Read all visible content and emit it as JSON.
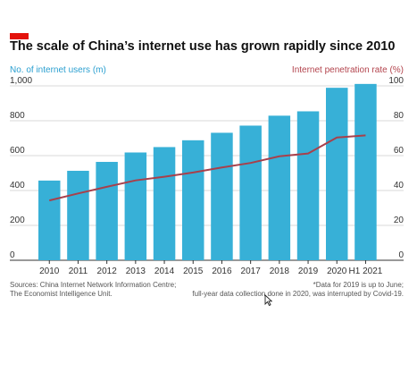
{
  "chart_data": {
    "type": "bar",
    "title": "The scale of China’s internet use has grown rapidly since 2010",
    "left_axis_label": "No. of internet users (m)",
    "right_axis_label": "Internet penetration rate (%)",
    "categories": [
      "2010",
      "2011",
      "2012",
      "2013",
      "2014",
      "2015",
      "2016",
      "2017",
      "2018",
      "2019",
      "2020",
      "H1 2021"
    ],
    "series": [
      {
        "name": "No. of internet users (m)",
        "axis": "left",
        "type": "bar",
        "values": [
          457,
          513,
          564,
          618,
          649,
          688,
          731,
          772,
          829,
          854,
          989,
          1011
        ]
      },
      {
        "name": "Internet penetration rate (%)",
        "axis": "right",
        "type": "line",
        "values": [
          34.3,
          38.3,
          42.1,
          45.8,
          47.9,
          50.3,
          53.2,
          55.8,
          59.6,
          61.2,
          70.4,
          71.6
        ]
      }
    ],
    "left_ticks": [
      "0",
      "200",
      "400",
      "600",
      "800",
      "1,000"
    ],
    "right_ticks": [
      "0",
      "20",
      "40",
      "60",
      "80",
      "100"
    ],
    "ylim_left": [
      0,
      1000
    ],
    "ylim_right": [
      0,
      100
    ],
    "grid": true,
    "colors": {
      "bars": "#37b0d7",
      "line": "#a8404b",
      "accent": "#e3120b",
      "left_axis": "#2a9fd0",
      "right_axis": "#b3444d"
    }
  },
  "footer": {
    "source_line1": "Sources: China Internet Network Information Centre;",
    "source_line2": "The Economist Intelligence Unit.",
    "note_line1": "*Data for 2019 is up to June;",
    "note_line2": "full-year data collection done in 2020, was interrupted by Covid-19."
  }
}
